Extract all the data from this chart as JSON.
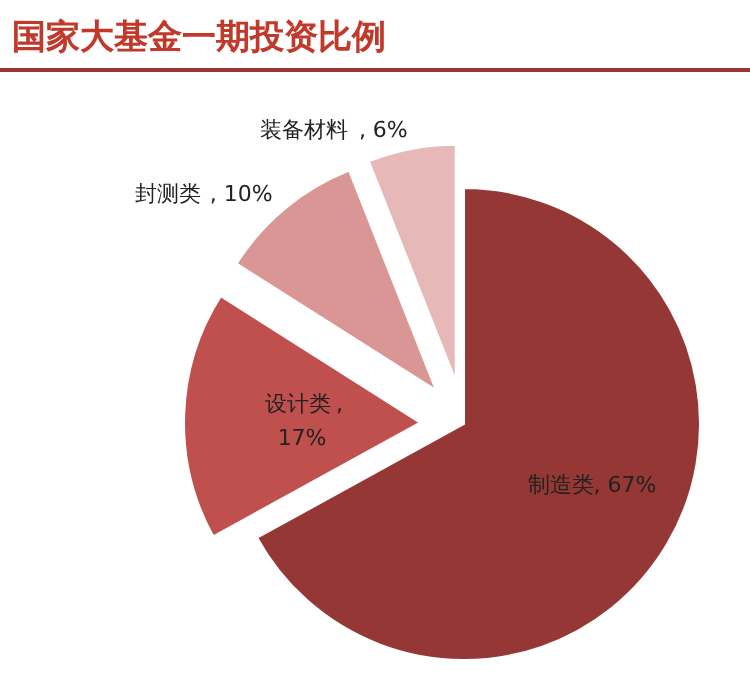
{
  "chart_data": {
    "type": "pie",
    "title": "国家大基金一期投资比例",
    "categories": [
      "制造类",
      "设计类",
      "封测类",
      "装备材料"
    ],
    "values": [
      67,
      17,
      10,
      6
    ],
    "value_labels": [
      ", 67%",
      ", 17%",
      ", 10%",
      ", 6%"
    ],
    "colors": [
      "#953735",
      "#c0504d",
      "#d99694",
      "#e6b9b8"
    ],
    "legend": false
  }
}
